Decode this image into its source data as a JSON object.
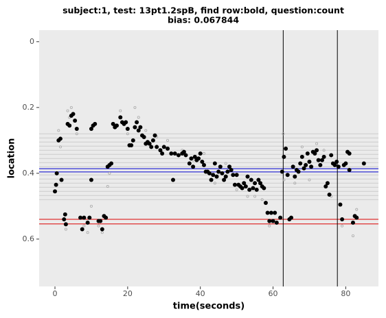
{
  "chart_data": {
    "type": "scatter",
    "title": "subject:1, test: 13pt1.2spB, find row:bold, question:count",
    "subtitle": "bias: 0.067844",
    "x_label": "time(seconds)",
    "y_label": "location",
    "xlim": [
      -4.35,
      89.0
    ],
    "ylim": [
      -0.035,
      0.744
    ],
    "y_reversed": true,
    "xticks": [
      0,
      20,
      40,
      60,
      80
    ],
    "yticks": [
      0,
      0.2,
      0.4,
      0.6
    ],
    "hlines": [
      {
        "value": 0.28,
        "color": "#cccccc"
      },
      {
        "value": 0.2925,
        "color": "#cccccc"
      },
      {
        "value": 0.305,
        "color": "#cccccc"
      },
      {
        "value": 0.3175,
        "color": "#cccccc"
      },
      {
        "value": 0.33,
        "color": "#cccccc"
      },
      {
        "value": 0.3425,
        "color": "#cccccc"
      },
      {
        "value": 0.355,
        "color": "#cccccc"
      },
      {
        "value": 0.3675,
        "color": "#cccccc"
      },
      {
        "value": 0.38,
        "color": "#cccccc"
      },
      {
        "value": 0.405,
        "color": "#cccccc"
      },
      {
        "value": 0.4175,
        "color": "#cccccc"
      },
      {
        "value": 0.43,
        "color": "#cccccc"
      },
      {
        "value": 0.4425,
        "color": "#cccccc"
      },
      {
        "value": 0.455,
        "color": "#cccccc"
      },
      {
        "value": 0.4675,
        "color": "#cccccc"
      },
      {
        "value": 0.48,
        "color": "#cccccc"
      },
      {
        "value": 0.386,
        "color": "#0000cc"
      },
      {
        "value": 0.396,
        "color": "#0000cc"
      },
      {
        "value": 0.54,
        "color": "#dd0000"
      },
      {
        "value": 0.554,
        "color": "#dd0000"
      }
    ],
    "vlines": [
      {
        "value": 62.8,
        "color": "#000000"
      },
      {
        "value": 77.7,
        "color": "#000000"
      }
    ],
    "series": [
      {
        "color": "#aaaaaa",
        "size": 1.6,
        "x": [
          1,
          1.5,
          3,
          3.5,
          4,
          4.5,
          6,
          8,
          9,
          10,
          12,
          13,
          14.5,
          15,
          18,
          20,
          22,
          23,
          25,
          28,
          31,
          35,
          38,
          41,
          44,
          47,
          50,
          53,
          55,
          57,
          59,
          62.8,
          63,
          66,
          68,
          70,
          72,
          74,
          76,
          79,
          82,
          83
        ],
        "values": [
          0.27,
          0.32,
          0.57,
          0.21,
          0.23,
          0.2,
          0.28,
          0.56,
          0.58,
          0.5,
          0.56,
          0.58,
          0.44,
          0.4,
          0.21,
          0.28,
          0.2,
          0.23,
          0.27,
          0.29,
          0.3,
          0.33,
          0.36,
          0.34,
          0.43,
          0.37,
          0.45,
          0.47,
          0.47,
          0.48,
          0.56,
          0.28,
          0.42,
          0.43,
          0.32,
          0.42,
          0.31,
          0.33,
          0.47,
          0.56,
          0.59,
          0.51
        ]
      },
      {
        "color": "#000000",
        "size": 3,
        "x": [
          0,
          0.3,
          0.5,
          1,
          1.5,
          1.8,
          2.5,
          2.8,
          3,
          3.5,
          4,
          4.5,
          5,
          5.5,
          6,
          7,
          7.5,
          8,
          9,
          9.5,
          10,
          10,
          10.5,
          11,
          12,
          12.5,
          13,
          13.5,
          14,
          14.5,
          15,
          15.5,
          16,
          16.5,
          17,
          18,
          18.5,
          19,
          19.5,
          20,
          20.5,
          21,
          21.5,
          22,
          22.5,
          23,
          23.5,
          24,
          24.5,
          25,
          25.5,
          26,
          26.5,
          27,
          27.5,
          28,
          29,
          29.5,
          30,
          31,
          32,
          32.5,
          33,
          34,
          35,
          35.5,
          36,
          37,
          37.5,
          38,
          38.5,
          39,
          39.5,
          40,
          40.5,
          41,
          41.5,
          42,
          42.5,
          43,
          43.5,
          44,
          44.5,
          45,
          45.5,
          46,
          46.5,
          47,
          47.5,
          48,
          48.5,
          49,
          49.5,
          50,
          50.5,
          51,
          51.5,
          52,
          52.5,
          53,
          53.5,
          54,
          54.5,
          55,
          55.5,
          56,
          56.5,
          57,
          57.5,
          58,
          58.5,
          59,
          59.5,
          60,
          60.5,
          61,
          62,
          62.5,
          63,
          63.5,
          64,
          64.5,
          65,
          65.5,
          66,
          66.5,
          67,
          67.5,
          68,
          68.5,
          69,
          69.5,
          70,
          70.5,
          71,
          71.5,
          72,
          72.5,
          73,
          73.5,
          74,
          74.5,
          75,
          75.5,
          76,
          76.5,
          77,
          77.5,
          78,
          78.5,
          79,
          79.5,
          80,
          80.5,
          81,
          81,
          82,
          82.5,
          83,
          85
        ],
        "values": [
          0.455,
          0.435,
          0.4,
          0.3,
          0.295,
          0.42,
          0.54,
          0.525,
          0.555,
          0.25,
          0.255,
          0.225,
          0.22,
          0.24,
          0.265,
          0.535,
          0.57,
          0.535,
          0.55,
          0.535,
          0.265,
          0.42,
          0.255,
          0.25,
          0.545,
          0.545,
          0.57,
          0.53,
          0.535,
          0.38,
          0.375,
          0.37,
          0.25,
          0.26,
          0.255,
          0.23,
          0.245,
          0.25,
          0.245,
          0.265,
          0.315,
          0.315,
          0.3,
          0.26,
          0.245,
          0.27,
          0.26,
          0.285,
          0.29,
          0.31,
          0.305,
          0.31,
          0.32,
          0.3,
          0.285,
          0.32,
          0.33,
          0.34,
          0.32,
          0.325,
          0.34,
          0.42,
          0.34,
          0.345,
          0.34,
          0.335,
          0.345,
          0.37,
          0.355,
          0.38,
          0.35,
          0.36,
          0.355,
          0.34,
          0.365,
          0.375,
          0.395,
          0.395,
          0.4,
          0.42,
          0.405,
          0.37,
          0.41,
          0.395,
          0.38,
          0.4,
          0.42,
          0.41,
          0.395,
          0.38,
          0.39,
          0.405,
          0.435,
          0.405,
          0.435,
          0.44,
          0.445,
          0.43,
          0.44,
          0.41,
          0.45,
          0.42,
          0.445,
          0.43,
          0.45,
          0.42,
          0.43,
          0.44,
          0.445,
          0.49,
          0.52,
          0.545,
          0.52,
          0.545,
          0.52,
          0.55,
          0.535,
          0.395,
          0.35,
          0.325,
          0.405,
          0.54,
          0.535,
          0.38,
          0.41,
          0.39,
          0.395,
          0.37,
          0.35,
          0.385,
          0.375,
          0.34,
          0.365,
          0.38,
          0.335,
          0.34,
          0.33,
          0.36,
          0.375,
          0.36,
          0.35,
          0.44,
          0.43,
          0.465,
          0.345,
          0.37,
          0.375,
          0.365,
          0.38,
          0.495,
          0.54,
          0.375,
          0.37,
          0.335,
          0.39,
          0.34,
          0.55,
          0.53,
          0.535,
          0.37
        ]
      }
    ]
  }
}
